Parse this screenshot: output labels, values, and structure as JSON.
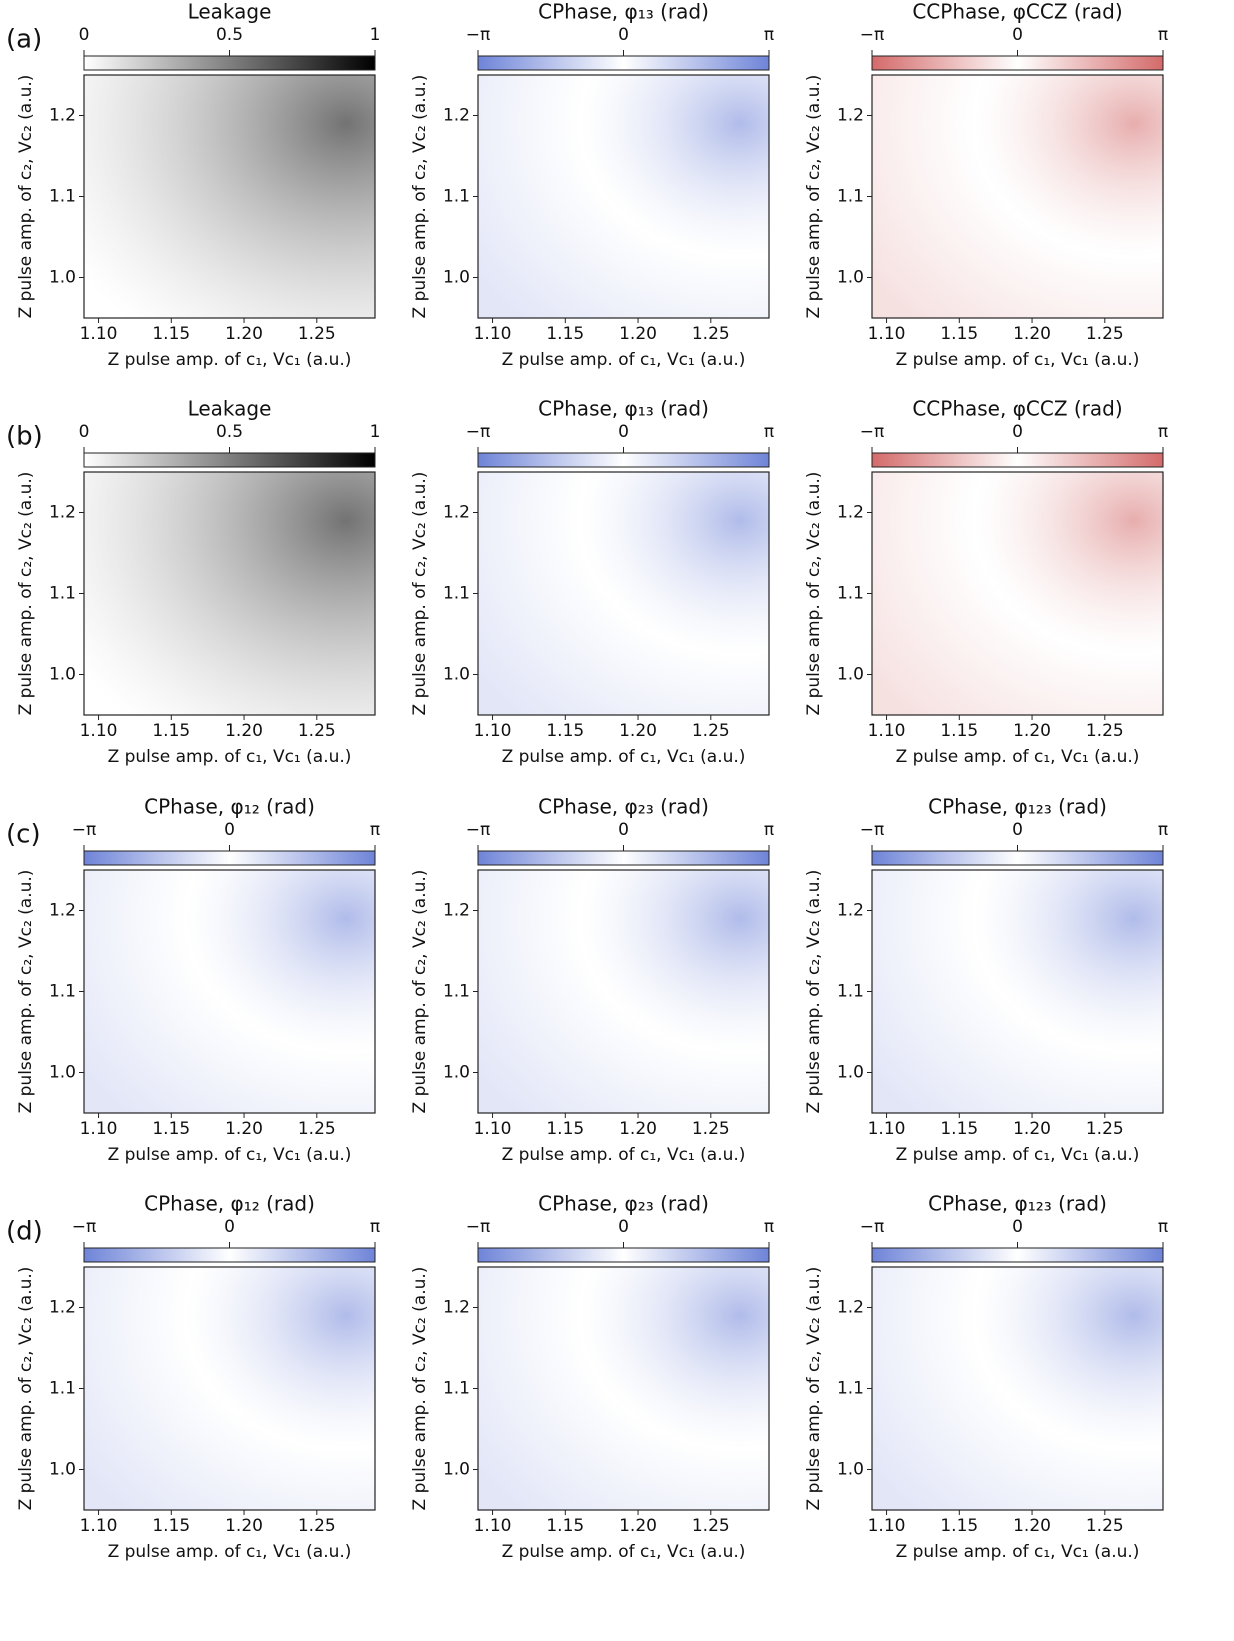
{
  "panels": [
    {
      "label": "(a)"
    },
    {
      "label": "(b)"
    },
    {
      "label": "(c)"
    },
    {
      "label": "(d)"
    }
  ],
  "chart_data": [
    {
      "type": "heatmap",
      "title": "Leakage",
      "colors": [
        "#ffffff",
        "#000000"
      ],
      "clim": [
        0,
        1
      ],
      "cticks": [
        0,
        0.5,
        1
      ],
      "xlabel": "Z pulse amp. of c₁, Vc₁ (a.u.)",
      "ylabel": "Z pulse amp. of c₂, Vc₂ (a.u.)",
      "xlim": [
        1.09,
        1.29
      ],
      "ylim": [
        0.95,
        1.25
      ],
      "xticks": [
        {
          "value": 1.1,
          "label": "1.10"
        },
        1.15,
        {
          "value": 1.2,
          "label": "1.20"
        },
        1.25
      ],
      "yticks": [
        {
          "value": 1,
          "label": "1.0"
        },
        1.1,
        1.2
      ]
    },
    {
      "type": "heatmap",
      "title": "CPhase, φ₁₃ (rad)",
      "colors": [
        "#6f84d8",
        "#ffffff",
        "#6f84d8"
      ],
      "clim": [
        -3.1416,
        3.1416
      ],
      "cticks": [
        {
          "value": -3.1416,
          "label": "−π"
        },
        0,
        {
          "value": 3.1416,
          "label": "π"
        }
      ],
      "xlabel": "Z pulse amp. of c₁, Vc₁ (a.u.)",
      "ylabel": "Z pulse amp. of c₂, Vc₂ (a.u.)",
      "xlim": [
        1.09,
        1.29
      ],
      "ylim": [
        0.95,
        1.25
      ],
      "xticks": [
        {
          "value": 1.1,
          "label": "1.10"
        },
        1.15,
        {
          "value": 1.2,
          "label": "1.20"
        },
        1.25
      ],
      "yticks": [
        {
          "value": 1,
          "label": "1.0"
        },
        1.1,
        1.2
      ]
    },
    {
      "type": "heatmap",
      "title": "CCPhase, φCCZ (rad)",
      "colors": [
        "#d46a6a",
        "#ffffff",
        "#d46a6a"
      ],
      "clim": [
        -3.1416,
        3.1416
      ],
      "cticks": [
        {
          "value": -3.1416,
          "label": "−π"
        },
        0,
        {
          "value": 3.1416,
          "label": "π"
        }
      ],
      "xlabel": "Z pulse amp. of c₁, Vc₁ (a.u.)",
      "ylabel": "Z pulse amp. of c₂, Vc₂ (a.u.)",
      "xlim": [
        1.09,
        1.29
      ],
      "ylim": [
        0.95,
        1.25
      ],
      "xticks": [
        {
          "value": 1.1,
          "label": "1.10"
        },
        1.15,
        {
          "value": 1.2,
          "label": "1.20"
        },
        1.25
      ],
      "yticks": [
        {
          "value": 1,
          "label": "1.0"
        },
        1.1,
        1.2
      ]
    },
    {
      "type": "heatmap",
      "title": "Leakage",
      "colors": [
        "#ffffff",
        "#000000"
      ],
      "clim": [
        0,
        1
      ],
      "cticks": [
        0,
        0.5,
        1
      ],
      "xlabel": "Z pulse amp. of c₁, Vc₁ (a.u.)",
      "ylabel": "Z pulse amp. of c₂, Vc₂ (a.u.)",
      "xlim": [
        1.09,
        1.29
      ],
      "ylim": [
        0.95,
        1.25
      ],
      "xticks": [
        {
          "value": 1.1,
          "label": "1.10"
        },
        1.15,
        {
          "value": 1.2,
          "label": "1.20"
        },
        1.25
      ],
      "yticks": [
        {
          "value": 1,
          "label": "1.0"
        },
        1.1,
        1.2
      ]
    },
    {
      "type": "heatmap",
      "title": "CPhase, φ₁₃ (rad)",
      "colors": [
        "#6f84d8",
        "#ffffff",
        "#6f84d8"
      ],
      "clim": [
        -3.1416,
        3.1416
      ],
      "cticks": [
        {
          "value": -3.1416,
          "label": "−π"
        },
        0,
        {
          "value": 3.1416,
          "label": "π"
        }
      ],
      "xlabel": "Z pulse amp. of c₁, Vc₁ (a.u.)",
      "ylabel": "Z pulse amp. of c₂, Vc₂ (a.u.)",
      "xlim": [
        1.09,
        1.29
      ],
      "ylim": [
        0.95,
        1.25
      ],
      "xticks": [
        {
          "value": 1.1,
          "label": "1.10"
        },
        1.15,
        {
          "value": 1.2,
          "label": "1.20"
        },
        1.25
      ],
      "yticks": [
        {
          "value": 1,
          "label": "1.0"
        },
        1.1,
        1.2
      ]
    },
    {
      "type": "heatmap",
      "title": "CCPhase, φCCZ (rad)",
      "colors": [
        "#d46a6a",
        "#ffffff",
        "#d46a6a"
      ],
      "clim": [
        -3.1416,
        3.1416
      ],
      "cticks": [
        {
          "value": -3.1416,
          "label": "−π"
        },
        0,
        {
          "value": 3.1416,
          "label": "π"
        }
      ],
      "xlabel": "Z pulse amp. of c₁, Vc₁ (a.u.)",
      "ylabel": "Z pulse amp. of c₂, Vc₂ (a.u.)",
      "xlim": [
        1.09,
        1.29
      ],
      "ylim": [
        0.95,
        1.25
      ],
      "xticks": [
        {
          "value": 1.1,
          "label": "1.10"
        },
        1.15,
        {
          "value": 1.2,
          "label": "1.20"
        },
        1.25
      ],
      "yticks": [
        {
          "value": 1,
          "label": "1.0"
        },
        1.1,
        1.2
      ]
    },
    {
      "type": "heatmap",
      "title": "CPhase, φ₁₂ (rad)",
      "colors": [
        "#6f84d8",
        "#ffffff",
        "#6f84d8"
      ],
      "clim": [
        -3.1416,
        3.1416
      ],
      "cticks": [
        {
          "value": -3.1416,
          "label": "−π"
        },
        0,
        {
          "value": 3.1416,
          "label": "π"
        }
      ],
      "xlabel": "Z pulse amp. of c₁, Vc₁ (a.u.)",
      "ylabel": "Z pulse amp. of c₂, Vc₂ (a.u.)",
      "xlim": [
        1.09,
        1.29
      ],
      "ylim": [
        0.95,
        1.25
      ],
      "xticks": [
        {
          "value": 1.1,
          "label": "1.10"
        },
        1.15,
        {
          "value": 1.2,
          "label": "1.20"
        },
        1.25
      ],
      "yticks": [
        {
          "value": 1,
          "label": "1.0"
        },
        1.1,
        1.2
      ]
    },
    {
      "type": "heatmap",
      "title": "CPhase, φ₂₃ (rad)",
      "colors": [
        "#6f84d8",
        "#ffffff",
        "#6f84d8"
      ],
      "clim": [
        -3.1416,
        3.1416
      ],
      "cticks": [
        {
          "value": -3.1416,
          "label": "−π"
        },
        0,
        {
          "value": 3.1416,
          "label": "π"
        }
      ],
      "xlabel": "Z pulse amp. of c₁, Vc₁ (a.u.)",
      "ylabel": "Z pulse amp. of c₂, Vc₂ (a.u.)",
      "xlim": [
        1.09,
        1.29
      ],
      "ylim": [
        0.95,
        1.25
      ],
      "xticks": [
        {
          "value": 1.1,
          "label": "1.10"
        },
        1.15,
        {
          "value": 1.2,
          "label": "1.20"
        },
        1.25
      ],
      "yticks": [
        {
          "value": 1,
          "label": "1.0"
        },
        1.1,
        1.2
      ]
    },
    {
      "type": "heatmap",
      "title": "CPhase, φ₁₂₃ (rad)",
      "colors": [
        "#6f84d8",
        "#ffffff",
        "#6f84d8"
      ],
      "clim": [
        -3.1416,
        3.1416
      ],
      "cticks": [
        {
          "value": -3.1416,
          "label": "−π"
        },
        0,
        {
          "value": 3.1416,
          "label": "π"
        }
      ],
      "xlabel": "Z pulse amp. of c₁, Vc₁ (a.u.)",
      "ylabel": "Z pulse amp. of c₂, Vc₂ (a.u.)",
      "xlim": [
        1.09,
        1.29
      ],
      "ylim": [
        0.95,
        1.25
      ],
      "xticks": [
        {
          "value": 1.1,
          "label": "1.10"
        },
        1.15,
        {
          "value": 1.2,
          "label": "1.20"
        },
        1.25
      ],
      "yticks": [
        {
          "value": 1,
          "label": "1.0"
        },
        1.1,
        1.2
      ]
    },
    {
      "type": "heatmap",
      "title": "CPhase, φ₁₂ (rad)",
      "colors": [
        "#6f84d8",
        "#ffffff",
        "#6f84d8"
      ],
      "clim": [
        -3.1416,
        3.1416
      ],
      "cticks": [
        {
          "value": -3.1416,
          "label": "−π"
        },
        0,
        {
          "value": 3.1416,
          "label": "π"
        }
      ],
      "xlabel": "Z pulse amp. of c₁, Vc₁ (a.u.)",
      "ylabel": "Z pulse amp. of c₂, Vc₂ (a.u.)",
      "xlim": [
        1.09,
        1.29
      ],
      "ylim": [
        0.95,
        1.25
      ],
      "xticks": [
        {
          "value": 1.1,
          "label": "1.10"
        },
        1.15,
        {
          "value": 1.2,
          "label": "1.20"
        },
        1.25
      ],
      "yticks": [
        {
          "value": 1,
          "label": "1.0"
        },
        1.1,
        1.2
      ]
    },
    {
      "type": "heatmap",
      "title": "CPhase, φ₂₃ (rad)",
      "colors": [
        "#6f84d8",
        "#ffffff",
        "#6f84d8"
      ],
      "clim": [
        -3.1416,
        3.1416
      ],
      "cticks": [
        {
          "value": -3.1416,
          "label": "−π"
        },
        0,
        {
          "value": 3.1416,
          "label": "π"
        }
      ],
      "xlabel": "Z pulse amp. of c₁, Vc₁ (a.u.)",
      "ylabel": "Z pulse amp. of c₂, Vc₂ (a.u.)",
      "xlim": [
        1.09,
        1.29
      ],
      "ylim": [
        0.95,
        1.25
      ],
      "xticks": [
        {
          "value": 1.1,
          "label": "1.10"
        },
        1.15,
        {
          "value": 1.2,
          "label": "1.20"
        },
        1.25
      ],
      "yticks": [
        {
          "value": 1,
          "label": "1.0"
        },
        1.1,
        1.2
      ]
    },
    {
      "type": "heatmap",
      "title": "CPhase, φ₁₂₃ (rad)",
      "colors": [
        "#6f84d8",
        "#ffffff",
        "#6f84d8"
      ],
      "clim": [
        -3.1416,
        3.1416
      ],
      "cticks": [
        {
          "value": -3.1416,
          "label": "−π"
        },
        0,
        {
          "value": 3.1416,
          "label": "π"
        }
      ],
      "xlabel": "Z pulse amp. of c₁, Vc₁ (a.u.)",
      "ylabel": "Z pulse amp. of c₂, Vc₂ (a.u.)",
      "xlim": [
        1.09,
        1.29
      ],
      "ylim": [
        0.95,
        1.25
      ],
      "xticks": [
        {
          "value": 1.1,
          "label": "1.10"
        },
        1.15,
        {
          "value": 1.2,
          "label": "1.20"
        },
        1.25
      ],
      "yticks": [
        {
          "value": 1,
          "label": "1.0"
        },
        1.1,
        1.2
      ]
    }
  ]
}
